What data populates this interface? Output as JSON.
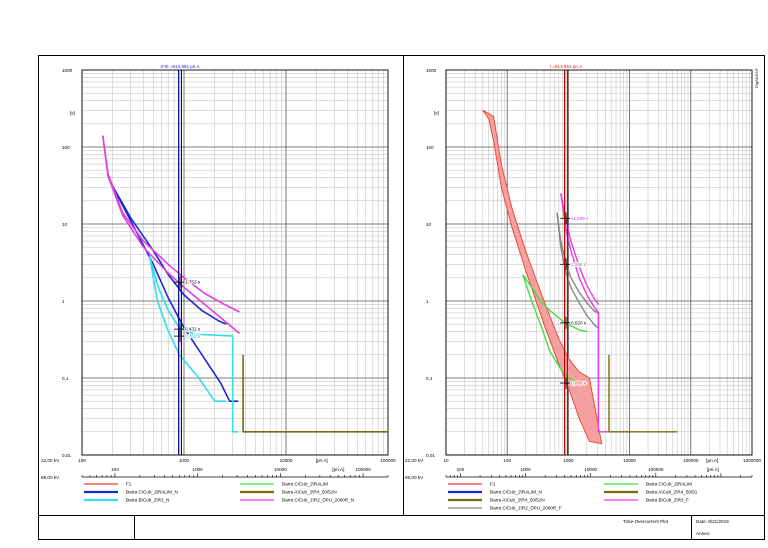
{
  "panels": [
    {
      "id": "left",
      "marker_label": "3*I0 =913.891 pri.A",
      "marker_label_color": "#2222cc",
      "marker_x": 913.891,
      "marker_line_color": "#000080",
      "y_unit": "[s]",
      "x_unit": "[pri.A]",
      "voltage_top": "22,00 kV",
      "voltage_bottom": "69,00 kV",
      "y_ticks": [
        "0,01",
        "0,1",
        "1",
        "10",
        "100",
        "1000"
      ],
      "x_ticks_top": [
        "100",
        "1000",
        "10000",
        "100000"
      ],
      "x_ticks_bottom": [
        "100",
        "1000",
        "10000",
        "100000"
      ],
      "annotations": [
        {
          "text": "1,753 s",
          "x": 1000,
          "y": 1.753,
          "color": "#000000"
        },
        {
          "text": "0,431 s",
          "x": 1000,
          "y": 0.431,
          "color": "#000000"
        },
        {
          "text": "0,350 s",
          "x": 1000,
          "y": 0.35,
          "color": "#00c8e6"
        }
      ],
      "legend": [
        {
          "label": "F1",
          "color": "#e8402a",
          "width": 1
        },
        {
          "label": "Barra C\\Cub_2\\RALIM",
          "color": "#44dd44",
          "width": 1
        },
        {
          "label": "Barra C\\Cub_2\\RALIM_N",
          "color": "#1a2ad0",
          "width": 2
        },
        {
          "label": "Barra A\\Cub_2\\R4_50/51N",
          "color": "#7a6a10",
          "width": 2
        },
        {
          "label": "Barra B\\Cub_2\\R3_N",
          "color": "#33ddee",
          "width": 2
        },
        {
          "label": "Barra C\\Cub_1\\R2_DPU_2000R_N",
          "color": "#e040e0",
          "width": 1
        }
      ]
    },
    {
      "id": "right",
      "marker_label": "I =913.891 pri.A",
      "marker_label_color": "#e02020",
      "marker_x": 913.891,
      "marker_line_color": "#b00000",
      "y_unit": "[s]",
      "x_unit": "[pri.A]",
      "voltage_top": "22,00 kV",
      "voltage_bottom": "69,00 kV",
      "y_ticks": [
        "0,01",
        "0,1",
        "1",
        "10",
        "100",
        "1000"
      ],
      "x_ticks_top": [
        "10",
        "100",
        "1000",
        "10000",
        "100000",
        "1000000"
      ],
      "x_ticks_bottom": [
        "100",
        "1000",
        "10000",
        "100000"
      ],
      "side_label": "DIgSILENT",
      "annotations": [
        {
          "text": "11,859 s",
          "x": 1000,
          "y": 11.859,
          "color": "#e040e0"
        },
        {
          "text": "2,996 s",
          "x": 1000,
          "y": 2.996,
          "color": "#888888"
        },
        {
          "text": "0,520 s",
          "x": 1000,
          "y": 0.52,
          "color": "#000000"
        },
        {
          "text": "0,086 s",
          "x": 1000,
          "y": 0.086,
          "color": "#e02020"
        }
      ],
      "legend": [
        {
          "label": "F1",
          "color": "#e8402a",
          "width": 1
        },
        {
          "label": "Barra C\\Cub_2\\RALIM",
          "color": "#44dd44",
          "width": 1
        },
        {
          "label": "Barra C\\Cub_2\\RALIM_N",
          "color": "#1a2ad0",
          "width": 2
        },
        {
          "label": "Barra A\\Cub_2\\R4_50/51",
          "color": "#7a6a10",
          "width": 2
        },
        {
          "label": "Barra A\\Cub_2\\R4_50/51N",
          "color": "#7a6a10",
          "width": 2
        },
        {
          "label": "Barra B\\Cub_2\\R3_F",
          "color": "#e040e0",
          "width": 1
        },
        {
          "label": "Barra C\\Cub_1\\R2_DPU_2000R_F",
          "color": "#888888",
          "width": 1
        }
      ]
    }
  ],
  "footer": {
    "plot_title": "Time-Overcurrent Plot",
    "date": "Date: 8/21/2019",
    "annex": "Annex:"
  },
  "chart_data": [
    {
      "type": "line",
      "title": "3*I0 =913.891 pri.A",
      "xlabel": "[pri.A]",
      "ylabel": "[s]",
      "x_scale": "log",
      "y_scale": "log",
      "xlim": [
        100,
        100000
      ],
      "ylim": [
        0.01,
        1000
      ],
      "grid": true,
      "legend_position": "bottom",
      "series": [
        {
          "name": "Barra C\\Cub_2\\RALIM_N",
          "color": "#1a2ad0",
          "width": 1.6,
          "points": [
            [
              190,
              35
            ],
            [
              300,
              12
            ],
            [
              500,
              4.5
            ],
            [
              700,
              2.2
            ],
            [
              1000,
              1.2
            ],
            [
              1500,
              0.75
            ],
            [
              2200,
              0.55
            ],
            [
              2600,
              0.5
            ]
          ]
        },
        {
          "name": "Barra C\\Cub_2\\RALIM_N",
          "color": "#1a2ad0",
          "width": 1.6,
          "points": [
            [
              190,
              35
            ],
            [
              300,
              11
            ],
            [
              500,
              3.0
            ],
            [
              700,
              1.1
            ],
            [
              1000,
              0.45
            ],
            [
              1500,
              0.2
            ],
            [
              2300,
              0.085
            ],
            [
              2800,
              0.05
            ],
            [
              3400,
              0.05
            ]
          ]
        },
        {
          "name": "Barra B\\Cub_2\\R3_N",
          "color": "#33ddee",
          "width": 1.6,
          "points": [
            [
              460,
              3.8
            ],
            [
              560,
              1.5
            ],
            [
              700,
              0.75
            ],
            [
              900,
              0.45
            ],
            [
              1300,
              0.37
            ],
            [
              3000,
              0.35
            ],
            [
              3000,
              0.02
            ],
            [
              3400,
              0.02
            ]
          ]
        },
        {
          "name": "Barra B\\Cub_2\\R3_N",
          "color": "#33ddee",
          "width": 1.6,
          "points": [
            [
              460,
              3.8
            ],
            [
              550,
              1.0
            ],
            [
              680,
              0.45
            ],
            [
              900,
              0.2
            ],
            [
              1400,
              0.1
            ],
            [
              2000,
              0.05
            ],
            [
              2600,
              0.05
            ]
          ]
        },
        {
          "name": "Barra C\\Cub_1\\R2_DPU_2000R_N",
          "color": "#e040e0",
          "width": 1.6,
          "points": [
            [
              160,
              140
            ],
            [
              180,
              45
            ],
            [
              250,
              14
            ],
            [
              400,
              6
            ],
            [
              700,
              3.0
            ],
            [
              1000,
              2.0
            ],
            [
              1600,
              1.25
            ],
            [
              2500,
              0.9
            ],
            [
              3500,
              0.72
            ]
          ]
        },
        {
          "name": "Barra C\\Cub_1\\R2_DPU_2000R_N",
          "color": "#e040e0",
          "width": 1.6,
          "points": [
            [
              160,
              140
            ],
            [
              180,
              42
            ],
            [
              250,
              13
            ],
            [
              400,
              5.0
            ],
            [
              700,
              2.3
            ],
            [
              1000,
              1.5
            ],
            [
              1600,
              0.9
            ],
            [
              2500,
              0.55
            ],
            [
              3500,
              0.38
            ]
          ]
        },
        {
          "name": "Barra A\\Cub_2\\R4_50/51N",
          "color": "#7a6a10",
          "width": 1.6,
          "points": [
            [
              3800,
              0.2
            ],
            [
              3800,
              0.02
            ],
            [
              100000,
              0.02
            ]
          ]
        }
      ]
    },
    {
      "type": "line",
      "title": "I =913.891 pri.A",
      "xlabel": "[pri.A]",
      "ylabel": "[s]",
      "x_scale": "log",
      "y_scale": "log",
      "xlim": [
        10,
        1000000
      ],
      "ylim": [
        0.01,
        1000
      ],
      "grid": true,
      "legend_position": "bottom",
      "bands": [
        {
          "name": "F1",
          "color": "#e8402a",
          "fill": "#f4a0a0",
          "upper": [
            [
              40,
              300
            ],
            [
              60,
              250
            ],
            [
              80,
              60
            ],
            [
              120,
              16
            ],
            [
              200,
              4.5
            ],
            [
              400,
              1.0
            ],
            [
              700,
              0.32
            ],
            [
              1000,
              0.18
            ],
            [
              1500,
              0.12
            ],
            [
              2200,
              0.1
            ]
          ],
          "lower": [
            [
              50,
              230
            ],
            [
              60,
              120
            ],
            [
              80,
              30
            ],
            [
              120,
              9
            ],
            [
              200,
              2.5
            ],
            [
              400,
              0.5
            ],
            [
              700,
              0.15
            ],
            [
              1000,
              0.075
            ],
            [
              1500,
              0.03
            ],
            [
              2200,
              0.015
            ],
            [
              3500,
              0.014
            ]
          ]
        }
      ],
      "series": [
        {
          "name": "Barra C\\Cub_2\\RALIM",
          "color": "#44dd44",
          "width": 1.4,
          "points": [
            [
              180,
              2.2
            ],
            [
              250,
              1.0
            ],
            [
              350,
              0.5
            ],
            [
              500,
              0.22
            ],
            [
              800,
              0.12
            ],
            [
              1000,
              0.1
            ],
            [
              1500,
              0.085
            ],
            [
              2000,
              0.09
            ]
          ]
        },
        {
          "name": "Barra C\\Cub_2\\RALIM",
          "color": "#44dd44",
          "width": 1.4,
          "points": [
            [
              180,
              2.2
            ],
            [
              250,
              1.5
            ],
            [
              350,
              1.0
            ],
            [
              500,
              0.75
            ],
            [
              800,
              0.55
            ],
            [
              1000,
              0.5
            ],
            [
              1500,
              0.42
            ],
            [
              2000,
              0.4
            ]
          ]
        },
        {
          "name": "Barra C\\Cub_1\\R2_DPU_2000R_F",
          "color": "#888888",
          "width": 1.4,
          "points": [
            [
              650,
              14
            ],
            [
              750,
              6.0
            ],
            [
              900,
              3.2
            ],
            [
              1100,
              2.0
            ],
            [
              1500,
              1.3
            ],
            [
              2000,
              0.95
            ],
            [
              2600,
              0.75
            ],
            [
              3000,
              0.7
            ]
          ]
        },
        {
          "name": "Barra C\\Cub_1\\R2_DPU_2000R_F",
          "color": "#888888",
          "width": 1.4,
          "points": [
            [
              650,
              14
            ],
            [
              750,
              5.0
            ],
            [
              900,
              2.4
            ],
            [
              1100,
              1.5
            ],
            [
              1500,
              0.95
            ],
            [
              2000,
              0.65
            ],
            [
              2600,
              0.5
            ],
            [
              3000,
              0.45
            ]
          ]
        },
        {
          "name": "Barra B\\Cub_2\\R3_F",
          "color": "#e040e0",
          "width": 1.4,
          "points": [
            [
              750,
              25
            ],
            [
              900,
              12
            ],
            [
              1100,
              6.0
            ],
            [
              1500,
              2.8
            ],
            [
              2000,
              1.6
            ],
            [
              2600,
              1.1
            ],
            [
              3100,
              0.9
            ]
          ]
        },
        {
          "name": "Barra B\\Cub_2\\R3_F",
          "color": "#e040e0",
          "width": 1.4,
          "points": [
            [
              750,
              25
            ],
            [
              900,
              9
            ],
            [
              1100,
              4.5
            ],
            [
              1500,
              2.0
            ],
            [
              2000,
              1.2
            ],
            [
              2600,
              0.85
            ],
            [
              3100,
              0.7
            ],
            [
              3100,
              0.02
            ],
            [
              4500,
              0.02
            ]
          ]
        },
        {
          "name": "Barra A\\Cub_2\\R4_50/51",
          "color": "#7a6a10",
          "width": 1.4,
          "points": [
            [
              4600,
              0.2
            ],
            [
              4600,
              0.02
            ],
            [
              60000,
              0.02
            ]
          ]
        }
      ]
    }
  ]
}
